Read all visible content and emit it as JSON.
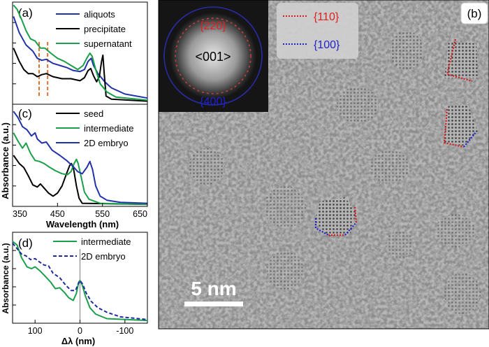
{
  "figure": {
    "tem_image": {
      "panel_label": "(b)",
      "fft_inset": {
        "center_label": "<001>",
        "top_label": "{220}",
        "bottom_label": "{400}"
      },
      "legend": [
        {
          "label": "{110}",
          "color": "#d81e1e",
          "style": "dotted"
        },
        {
          "label": "{100}",
          "color": "#2222cc",
          "style": "dotted"
        }
      ],
      "scale_bar": {
        "label": "5 nm"
      }
    }
  },
  "chart_data": [
    {
      "panel": "(a)",
      "type": "line",
      "xlim": [
        350,
        650
      ],
      "series": [
        {
          "name": "aliquots",
          "color": "#2233aa",
          "points": [
            [
              352,
              0.86
            ],
            [
              365,
              0.7
            ],
            [
              380,
              0.58
            ],
            [
              395,
              0.52
            ],
            [
              405,
              0.45
            ],
            [
              415,
              0.43
            ],
            [
              425,
              0.44
            ],
            [
              440,
              0.4
            ],
            [
              455,
              0.38
            ],
            [
              470,
              0.36
            ],
            [
              485,
              0.33
            ],
            [
              500,
              0.32
            ],
            [
              510,
              0.34
            ],
            [
              518,
              0.42
            ],
            [
              525,
              0.45
            ],
            [
              530,
              0.38
            ],
            [
              540,
              0.3
            ],
            [
              555,
              0.22
            ],
            [
              570,
              0.16
            ],
            [
              600,
              0.1
            ],
            [
              650,
              0.06
            ]
          ]
        },
        {
          "name": "precipitate",
          "color": "#000000",
          "points": [
            [
              352,
              0.55
            ],
            [
              365,
              0.42
            ],
            [
              375,
              0.34
            ],
            [
              385,
              0.3
            ],
            [
              395,
              0.3
            ],
            [
              405,
              0.27
            ],
            [
              415,
              0.29
            ],
            [
              425,
              0.3
            ],
            [
              440,
              0.27
            ],
            [
              460,
              0.25
            ],
            [
              480,
              0.25
            ],
            [
              500,
              0.23
            ],
            [
              510,
              0.26
            ],
            [
              518,
              0.33
            ],
            [
              524,
              0.35
            ],
            [
              530,
              0.28
            ],
            [
              537,
              0.22
            ],
            [
              543,
              0.27
            ],
            [
              548,
              0.42
            ],
            [
              551,
              0.48
            ],
            [
              554,
              0.3
            ],
            [
              558,
              0.08
            ],
            [
              570,
              0.05
            ],
            [
              650,
              0.03
            ]
          ]
        },
        {
          "name": "supernatant",
          "color": "#1a9f4a",
          "points": [
            [
              352,
              0.97
            ],
            [
              360,
              0.93
            ],
            [
              370,
              0.83
            ],
            [
              380,
              0.72
            ],
            [
              390,
              0.64
            ],
            [
              400,
              0.62
            ],
            [
              412,
              0.55
            ],
            [
              422,
              0.55
            ],
            [
              435,
              0.5
            ],
            [
              450,
              0.45
            ],
            [
              465,
              0.42
            ],
            [
              480,
              0.38
            ],
            [
              495,
              0.34
            ],
            [
              507,
              0.38
            ],
            [
              515,
              0.45
            ],
            [
              522,
              0.5
            ],
            [
              527,
              0.47
            ],
            [
              535,
              0.34
            ],
            [
              545,
              0.2
            ],
            [
              560,
              0.12
            ],
            [
              580,
              0.07
            ],
            [
              650,
              0.04
            ]
          ]
        }
      ],
      "markers": [
        {
          "x": 409,
          "style": "dashed",
          "color": "#e07030"
        },
        {
          "x": 428,
          "style": "dashed",
          "color": "#e07030"
        }
      ]
    },
    {
      "panel": "(c)",
      "type": "line",
      "xlabel": "Wavelength (nm)",
      "xlim": [
        350,
        650
      ],
      "xticks": [
        350,
        450,
        550,
        650
      ],
      "xtick_labels": [
        "350",
        "450",
        "550",
        "650"
      ],
      "series": [
        {
          "name": "seed",
          "color": "#000000",
          "points": [
            [
              352,
              0.5
            ],
            [
              365,
              0.42
            ],
            [
              375,
              0.38
            ],
            [
              385,
              0.3
            ],
            [
              395,
              0.21
            ],
            [
              405,
              0.19
            ],
            [
              412,
              0.22
            ],
            [
              420,
              0.18
            ],
            [
              430,
              0.13
            ],
            [
              440,
              0.1
            ],
            [
              450,
              0.13
            ],
            [
              460,
              0.2
            ],
            [
              470,
              0.32
            ],
            [
              477,
              0.4
            ],
            [
              481,
              0.42
            ],
            [
              486,
              0.36
            ],
            [
              492,
              0.2
            ],
            [
              498,
              0.08
            ],
            [
              505,
              0.03
            ],
            [
              650,
              0.02
            ]
          ]
        },
        {
          "name": "intermediate",
          "color": "#1a9f4a",
          "points": [
            [
              352,
              0.72
            ],
            [
              362,
              0.64
            ],
            [
              372,
              0.57
            ],
            [
              380,
              0.62
            ],
            [
              390,
              0.52
            ],
            [
              400,
              0.45
            ],
            [
              410,
              0.44
            ],
            [
              420,
              0.42
            ],
            [
              430,
              0.39
            ],
            [
              445,
              0.35
            ],
            [
              460,
              0.32
            ],
            [
              472,
              0.31
            ],
            [
              480,
              0.34
            ],
            [
              487,
              0.42
            ],
            [
              492,
              0.46
            ],
            [
              496,
              0.42
            ],
            [
              502,
              0.3
            ],
            [
              510,
              0.14
            ],
            [
              520,
              0.07
            ],
            [
              545,
              0.03
            ],
            [
              650,
              0.02
            ]
          ]
        },
        {
          "name": "2D embryo",
          "color": "#2233aa",
          "points": [
            [
              352,
              0.93
            ],
            [
              362,
              0.87
            ],
            [
              372,
              0.78
            ],
            [
              382,
              0.75
            ],
            [
              392,
              0.69
            ],
            [
              400,
              0.72
            ],
            [
              405,
              0.66
            ],
            [
              415,
              0.62
            ],
            [
              425,
              0.63
            ],
            [
              438,
              0.55
            ],
            [
              455,
              0.5
            ],
            [
              470,
              0.45
            ],
            [
              485,
              0.39
            ],
            [
              495,
              0.34
            ],
            [
              505,
              0.32
            ],
            [
              515,
              0.38
            ],
            [
              522,
              0.44
            ],
            [
              528,
              0.36
            ],
            [
              535,
              0.2
            ],
            [
              545,
              0.1
            ],
            [
              560,
              0.06
            ],
            [
              590,
              0.04
            ],
            [
              650,
              0.03
            ]
          ]
        }
      ]
    },
    {
      "panel": "(d)",
      "type": "line",
      "xlabel": "Δλ (nm)",
      "xlim": [
        150,
        -150
      ],
      "xticks": [
        100,
        0,
        -100
      ],
      "xtick_labels": [
        "100",
        "0",
        "-100"
      ],
      "series": [
        {
          "name": "intermediate",
          "color": "#1a9f4a",
          "style": "solid",
          "points": [
            [
              150,
              0.9
            ],
            [
              140,
              0.86
            ],
            [
              130,
              0.72
            ],
            [
              118,
              0.62
            ],
            [
              108,
              0.6
            ],
            [
              100,
              0.62
            ],
            [
              90,
              0.58
            ],
            [
              78,
              0.52
            ],
            [
              65,
              0.45
            ],
            [
              55,
              0.38
            ],
            [
              45,
              0.39
            ],
            [
              35,
              0.34
            ],
            [
              25,
              0.28
            ],
            [
              15,
              0.25
            ],
            [
              8,
              0.33
            ],
            [
              3,
              0.45
            ],
            [
              0,
              0.47
            ],
            [
              -5,
              0.42
            ],
            [
              -12,
              0.3
            ],
            [
              -22,
              0.17
            ],
            [
              -35,
              0.1
            ],
            [
              -60,
              0.05
            ],
            [
              -150,
              0.03
            ]
          ]
        },
        {
          "name": "2D embryo",
          "color": "#1f2aa0",
          "style": "dashed",
          "points": [
            [
              150,
              0.88
            ],
            [
              140,
              0.82
            ],
            [
              130,
              0.76
            ],
            [
              120,
              0.74
            ],
            [
              110,
              0.7
            ],
            [
              100,
              0.71
            ],
            [
              92,
              0.68
            ],
            [
              80,
              0.64
            ],
            [
              70,
              0.63
            ],
            [
              60,
              0.55
            ],
            [
              45,
              0.5
            ],
            [
              32,
              0.42
            ],
            [
              20,
              0.36
            ],
            [
              10,
              0.36
            ],
            [
              4,
              0.43
            ],
            [
              0,
              0.47
            ],
            [
              -6,
              0.43
            ],
            [
              -14,
              0.33
            ],
            [
              -25,
              0.24
            ],
            [
              -40,
              0.17
            ],
            [
              -60,
              0.12
            ],
            [
              -90,
              0.07
            ],
            [
              -150,
              0.04
            ]
          ]
        }
      ],
      "vline_x": 0
    }
  ],
  "shared": {
    "ylabel_ac": "Absorbance (a.u.)",
    "ylabel_d": "Absorbance (a.u.)"
  }
}
